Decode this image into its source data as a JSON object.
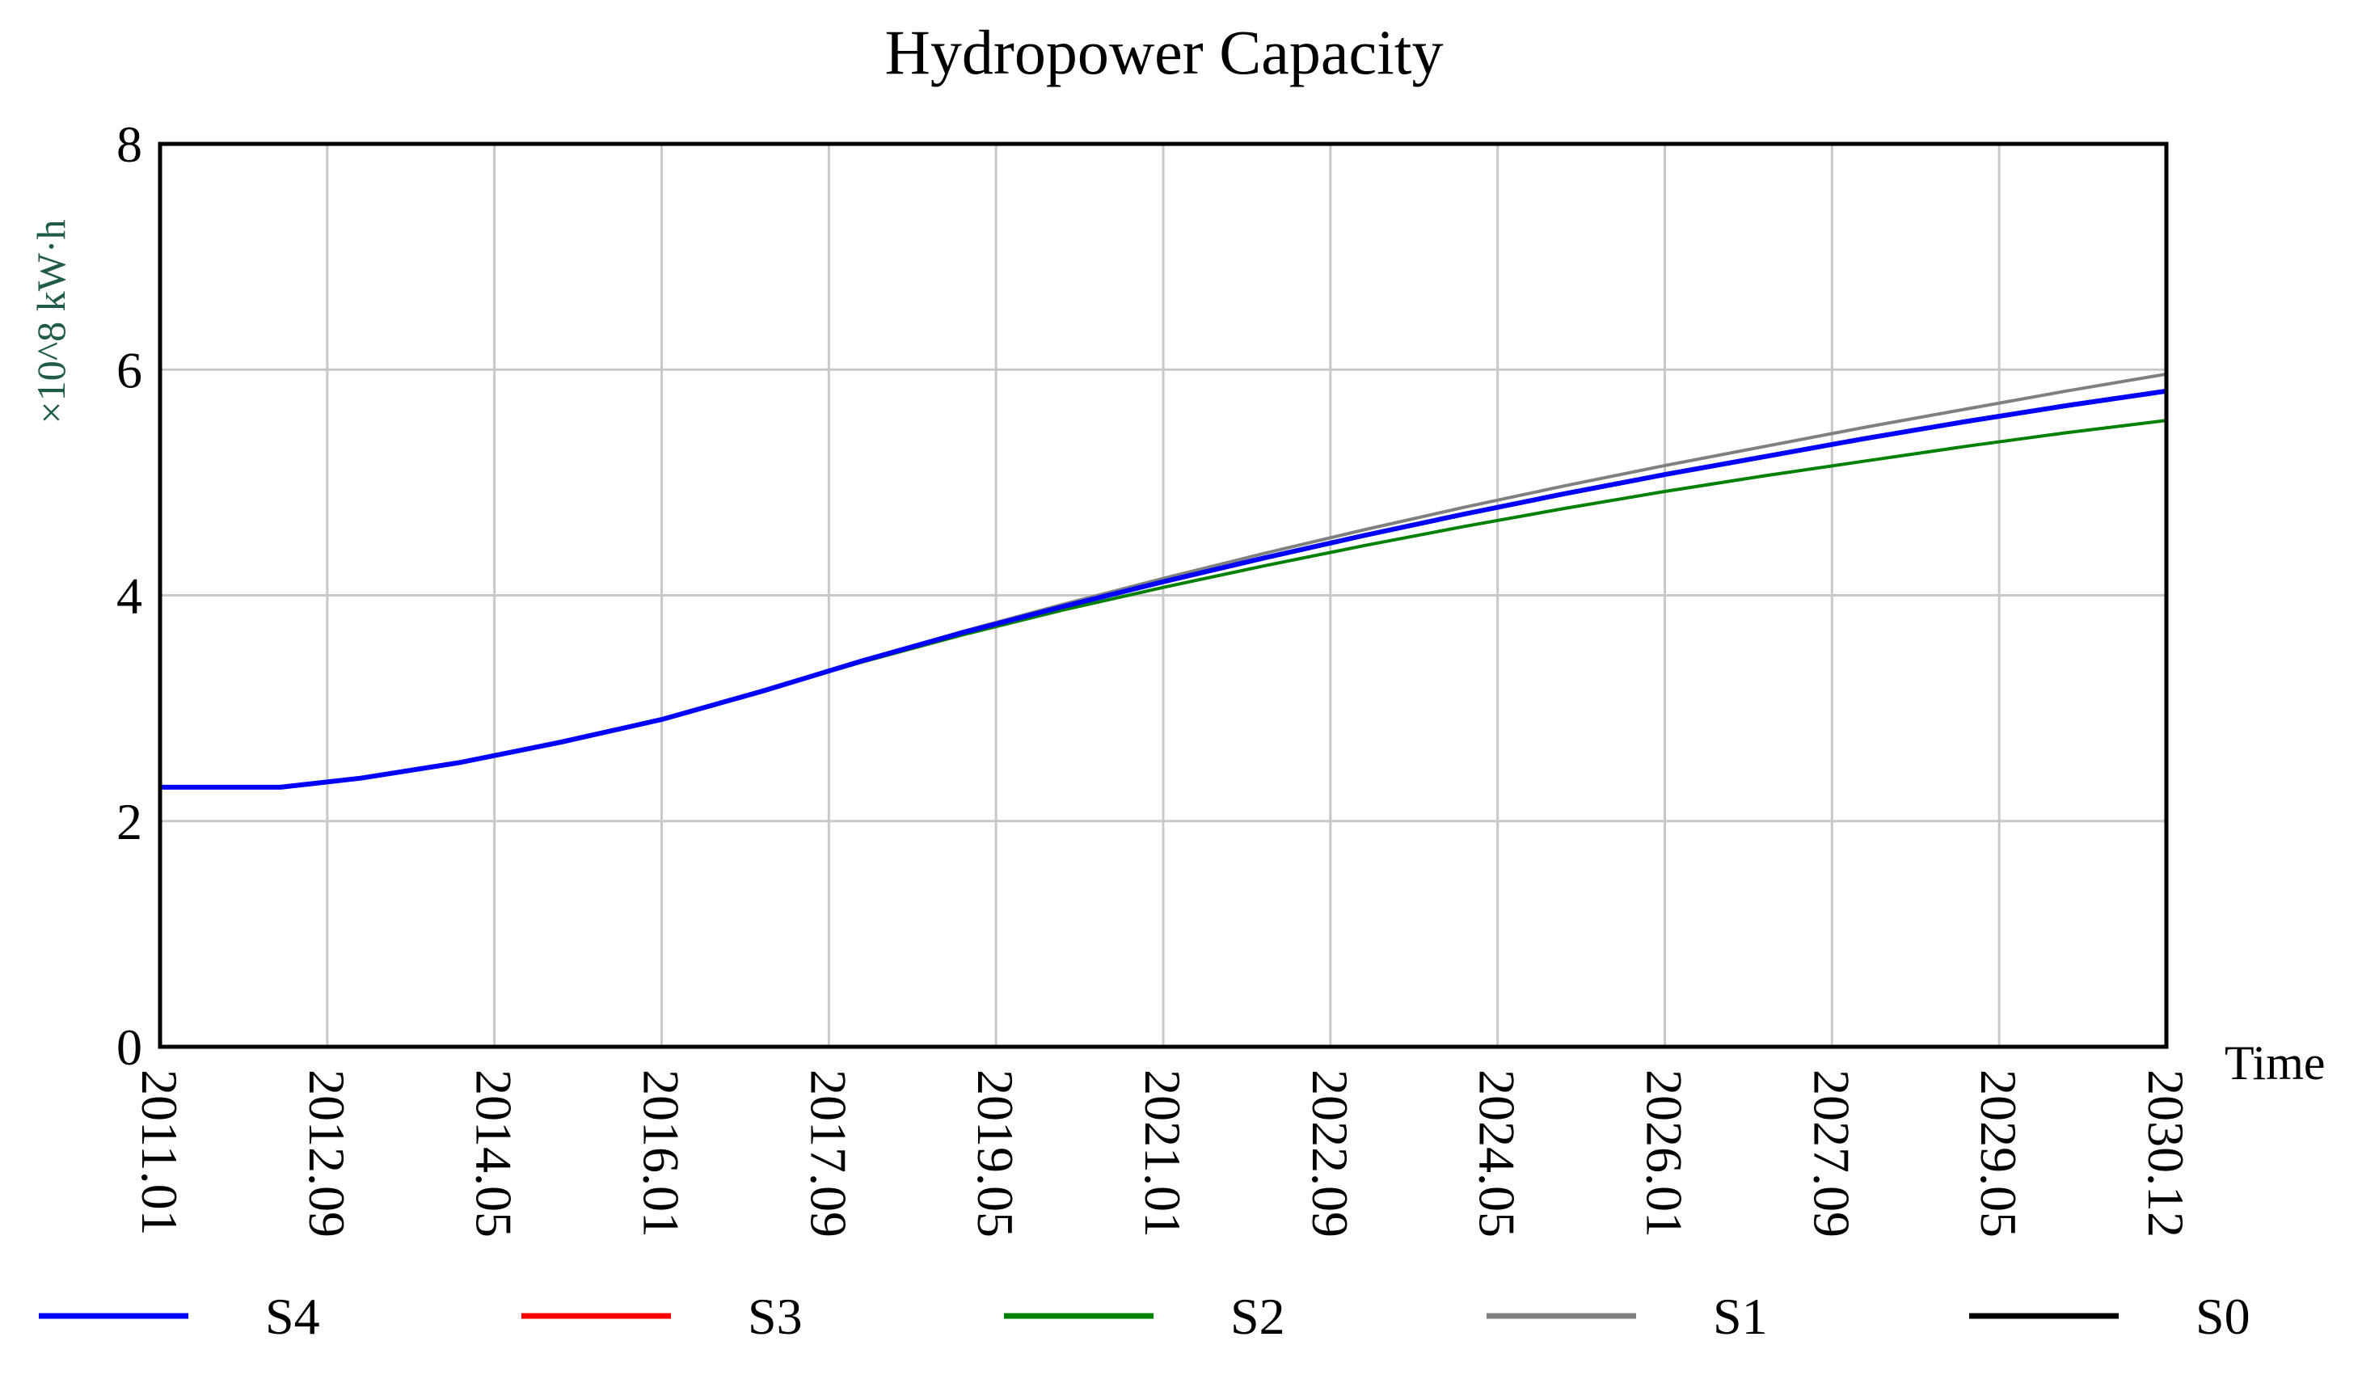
{
  "chart_data": {
    "type": "line",
    "title": "Hydropower Capacity",
    "ylabel": "×10^8 kW·h",
    "xlabel": "Time",
    "ylim": [
      0,
      8
    ],
    "yticks": [
      0,
      2,
      4,
      6,
      8
    ],
    "x_range": [
      2011.0,
      2031.0
    ],
    "xtick_labels": [
      "2011.01",
      "2012.09",
      "2014.05",
      "2016.01",
      "2017.09",
      "2019.05",
      "2021.01",
      "2022.09",
      "2024.05",
      "2026.01",
      "2027.09",
      "2029.05",
      "2030.12"
    ],
    "x": [
      2011.0,
      2012.2,
      2013.0,
      2014.0,
      2015.0,
      2016.0,
      2017.0,
      2018.0,
      2019.0,
      2020.0,
      2021.0,
      2022.0,
      2023.0,
      2024.0,
      2025.0,
      2026.0,
      2027.0,
      2028.0,
      2029.0,
      2030.0,
      2031.0
    ],
    "series": [
      {
        "name": "S4",
        "color": "#0000ff",
        "values": [
          2.3,
          2.3,
          2.38,
          2.52,
          2.7,
          2.9,
          3.15,
          3.42,
          3.67,
          3.9,
          4.12,
          4.33,
          4.53,
          4.72,
          4.9,
          5.07,
          5.23,
          5.39,
          5.54,
          5.68,
          5.81
        ]
      },
      {
        "name": "S3",
        "color": "#ff0000",
        "values": [
          2.3,
          2.3,
          2.38,
          2.52,
          2.7,
          2.9,
          3.15,
          3.42,
          3.67,
          3.9,
          4.12,
          4.33,
          4.53,
          4.72,
          4.9,
          5.07,
          5.23,
          5.39,
          5.54,
          5.68,
          5.81
        ]
      },
      {
        "name": "S2",
        "color": "#008000",
        "values": [
          2.3,
          2.3,
          2.38,
          2.52,
          2.7,
          2.9,
          3.15,
          3.41,
          3.65,
          3.87,
          4.07,
          4.26,
          4.44,
          4.61,
          4.77,
          4.92,
          5.06,
          5.19,
          5.32,
          5.44,
          5.55
        ]
      },
      {
        "name": "S1",
        "color": "#808080",
        "values": [
          2.3,
          2.3,
          2.38,
          2.52,
          2.7,
          2.9,
          3.15,
          3.42,
          3.68,
          3.92,
          4.15,
          4.37,
          4.58,
          4.78,
          4.97,
          5.15,
          5.32,
          5.49,
          5.65,
          5.81,
          5.96
        ]
      },
      {
        "name": "S0",
        "color": "#000000",
        "values": [
          2.3,
          2.3,
          2.38,
          2.52,
          2.7,
          2.9,
          3.15,
          3.42,
          3.67,
          3.9,
          4.12,
          4.33,
          4.53,
          4.72,
          4.9,
          5.07,
          5.23,
          5.39,
          5.54,
          5.68,
          5.81
        ]
      }
    ],
    "legend_order": [
      "S4",
      "S3",
      "S2",
      "S1",
      "S0"
    ],
    "legend_position": "bottom",
    "grid": true
  }
}
